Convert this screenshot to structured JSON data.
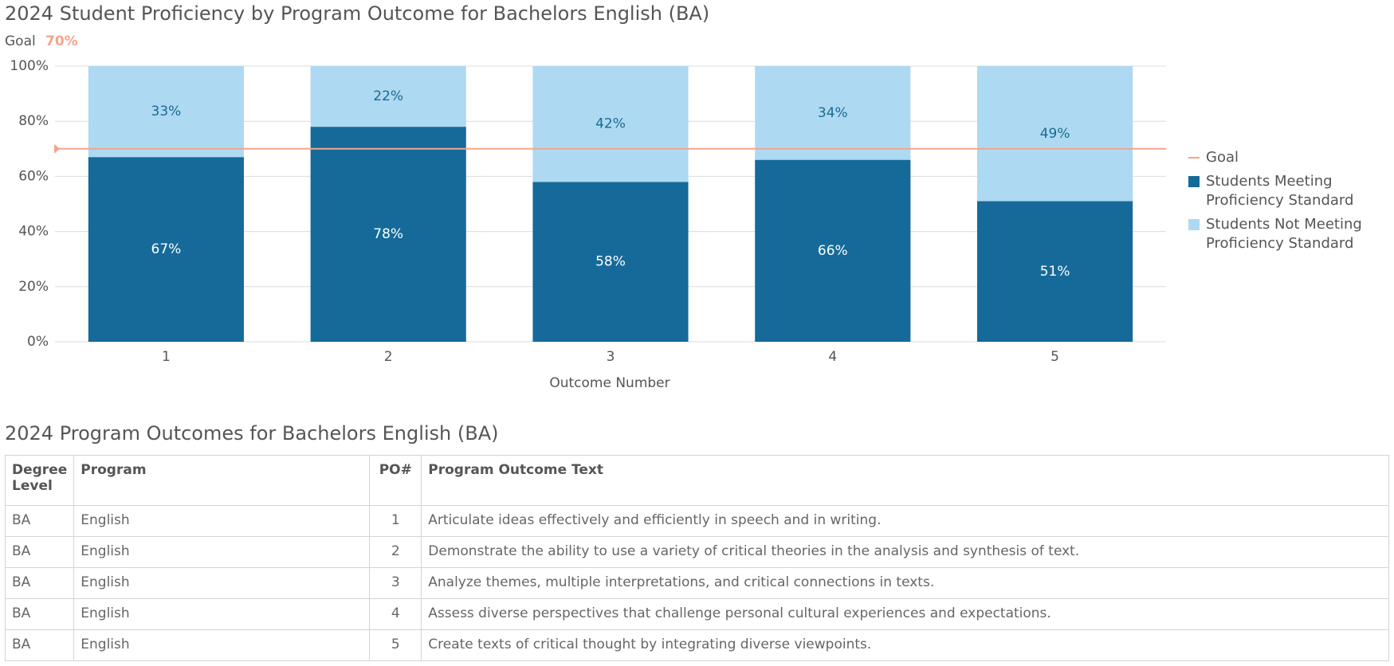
{
  "chart_data": {
    "type": "stacked_bar",
    "title": "2024 Student Proficiency by Program Outcome for Bachelors English (BA)",
    "goal_label": "Goal",
    "goal": {
      "value": 70,
      "label": "70%"
    },
    "goal_color": "#f4a58a",
    "categories": [
      "1",
      "2",
      "3",
      "4",
      "5"
    ],
    "x_label": "Outcome Number",
    "series": [
      {
        "name": "Students Meeting Proficiency Standard",
        "color": "#156a9a",
        "label_color": "#ffffff",
        "values": [
          67,
          78,
          58,
          66,
          51
        ],
        "value_labels": [
          "67%",
          "78%",
          "58%",
          "66%",
          "51%"
        ]
      },
      {
        "name": "Students Not Meeting Proficiency Standard",
        "color": "#add9f2",
        "label_color": "#1a6a92",
        "values": [
          33,
          22,
          42,
          34,
          49
        ],
        "value_labels": [
          "33%",
          "22%",
          "42%",
          "34%",
          "49%"
        ]
      }
    ],
    "ylim": [
      0,
      100
    ],
    "yticks": [
      {
        "value": 0,
        "label": "0%"
      },
      {
        "value": 20,
        "label": "20%"
      },
      {
        "value": 40,
        "label": "40%"
      },
      {
        "value": 60,
        "label": "60%"
      },
      {
        "value": 80,
        "label": "80%"
      },
      {
        "value": 100,
        "label": "100%"
      }
    ],
    "grid": true
  },
  "table": {
    "title": "2024 Program Outcomes for Bachelors English (BA)",
    "columns": [
      "Degree Level",
      "Program",
      "PO#",
      "Program Outcome Text"
    ],
    "rows": [
      [
        "BA",
        "English",
        "1",
        "Articulate ideas effectively and efficiently in speech and in writing."
      ],
      [
        "BA",
        "English",
        "2",
        "Demonstrate the ability to use a variety of critical theories in the analysis and synthesis of text."
      ],
      [
        "BA",
        "English",
        "3",
        "Analyze themes, multiple interpretations, and critical connections in texts."
      ],
      [
        "BA",
        "English",
        "4",
        "Assess diverse perspectives that challenge personal cultural experiences and expectations."
      ],
      [
        "BA",
        "English",
        "5",
        "Create texts of critical thought by integrating diverse viewpoints."
      ]
    ]
  }
}
